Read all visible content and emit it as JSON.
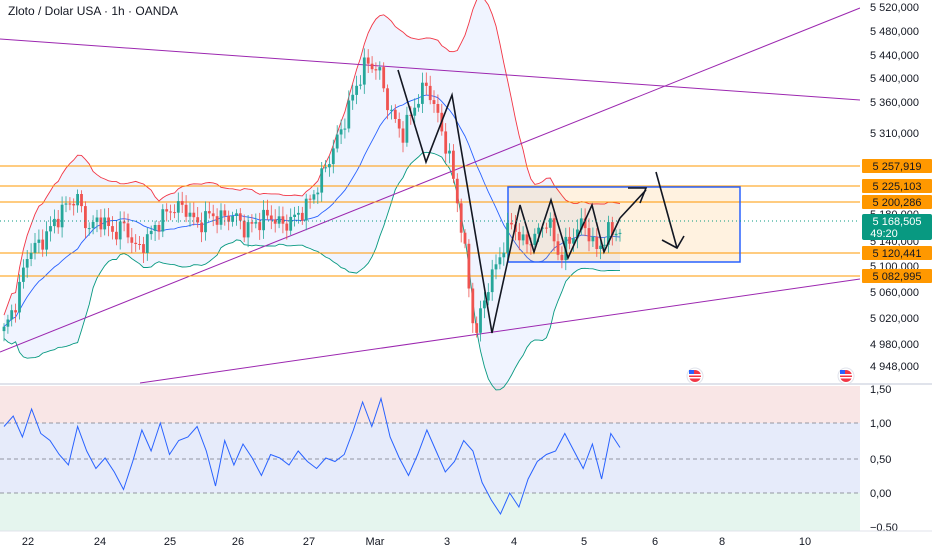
{
  "header": {
    "title": "Zloto / Dolar USA · 1h · OANDA"
  },
  "price_axis": {
    "ticks": [
      "5 520,000",
      "5 480,000",
      "5 440,000",
      "5 400,000",
      "5 360,000",
      "5 310,000",
      "5 180,000",
      "5 140,000",
      "5 100,000",
      "5 060,000",
      "5 020,000",
      "4 980,000",
      "4 948,000"
    ]
  },
  "levels": [
    {
      "label": "5 257,919",
      "value": 5257.919
    },
    {
      "label": "5 225,103",
      "value": 5225.103
    },
    {
      "label": "5 200,286",
      "value": 5200.286
    },
    {
      "label": "5 120,441",
      "value": 5120.441
    },
    {
      "label": "5 082,995",
      "value": 5082.995
    }
  ],
  "current_price": {
    "value_label": "5 168,505",
    "countdown": "49:20",
    "value": 5168.505
  },
  "indicator_axis": {
    "ticks": [
      "1,50",
      "1,00",
      "0,50",
      "0,00",
      "−0,50"
    ]
  },
  "time_axis": {
    "ticks": [
      "22",
      "24",
      "25",
      "26",
      "27",
      "Mar",
      "3",
      "4",
      "5",
      "6",
      "8",
      "10"
    ]
  },
  "colors": {
    "bull": "#26a69a",
    "bear": "#ef5350",
    "level_line": "#ff9800",
    "trendline": "#9c27b0",
    "bb_upper": "#f23645",
    "bb_mid": "#2962ff",
    "bb_lower": "#089981",
    "range_box": "#2962ff",
    "osc_line": "#2962ff",
    "price_tag": "#089981"
  },
  "chart_data": [
    {
      "type": "candlestick",
      "title": "Zloto / Dolar USA · 1h · OANDA",
      "x_ticks": [
        "22",
        "24",
        "25",
        "26",
        "27",
        "Mar",
        "3",
        "4",
        "5",
        "6",
        "8",
        "10"
      ],
      "ylim": [
        4940,
        5530
      ],
      "close_path": [
        {
          "x": 0,
          "y": 5030
        },
        {
          "x": 1,
          "y": 5070
        },
        {
          "x": 2,
          "y": 5140
        },
        {
          "x": 3,
          "y": 5150
        },
        {
          "x": 4,
          "y": 5175
        },
        {
          "x": 5,
          "y": 5200
        },
        {
          "x": 6,
          "y": 5215
        },
        {
          "x": 7,
          "y": 5170
        },
        {
          "x": 8,
          "y": 5185
        },
        {
          "x": 9,
          "y": 5165
        },
        {
          "x": 10,
          "y": 5175
        },
        {
          "x": 11,
          "y": 5140
        },
        {
          "x": 12,
          "y": 5160
        },
        {
          "x": 13,
          "y": 5185
        },
        {
          "x": 14,
          "y": 5200
        },
        {
          "x": 15,
          "y": 5200
        },
        {
          "x": 16,
          "y": 5175
        },
        {
          "x": 17,
          "y": 5190
        },
        {
          "x": 18,
          "y": 5185
        },
        {
          "x": 19,
          "y": 5190
        },
        {
          "x": 20,
          "y": 5170
        },
        {
          "x": 21,
          "y": 5180
        },
        {
          "x": 22,
          "y": 5190
        },
        {
          "x": 23,
          "y": 5175
        },
        {
          "x": 24,
          "y": 5185
        },
        {
          "x": 25,
          "y": 5200
        },
        {
          "x": 26,
          "y": 5230
        },
        {
          "x": 27,
          "y": 5270
        },
        {
          "x": 28,
          "y": 5310
        },
        {
          "x": 29,
          "y": 5360
        },
        {
          "x": 30,
          "y": 5400
        },
        {
          "x": 31,
          "y": 5390
        },
        {
          "x": 32,
          "y": 5330
        },
        {
          "x": 33,
          "y": 5300
        },
        {
          "x": 34,
          "y": 5340
        },
        {
          "x": 35,
          "y": 5370
        },
        {
          "x": 36,
          "y": 5320
        },
        {
          "x": 37,
          "y": 5260
        },
        {
          "x": 38,
          "y": 5160
        },
        {
          "x": 39,
          "y": 5020
        },
        {
          "x": 40,
          "y": 5090
        },
        {
          "x": 41,
          "y": 5130
        },
        {
          "x": 42,
          "y": 5180
        },
        {
          "x": 43,
          "y": 5150
        },
        {
          "x": 44,
          "y": 5160
        },
        {
          "x": 45,
          "y": 5185
        },
        {
          "x": 46,
          "y": 5130
        },
        {
          "x": 47,
          "y": 5160
        },
        {
          "x": 48,
          "y": 5180
        },
        {
          "x": 49,
          "y": 5140
        },
        {
          "x": 50,
          "y": 5165
        },
        {
          "x": 51,
          "y": 5168.505
        }
      ]
    },
    {
      "type": "line",
      "ylim": [
        -0.6,
        1.6
      ],
      "series": [
        {
          "values": [
            0.95,
            1.1,
            0.8,
            1.2,
            0.85,
            0.75,
            0.55,
            0.4,
            0.95,
            0.6,
            0.35,
            0.5,
            0.3,
            0.05,
            0.45,
            0.9,
            0.6,
            1.0,
            0.55,
            0.75,
            0.8,
            0.95,
            0.6,
            0.1,
            0.75,
            0.4,
            0.7,
            0.5,
            0.25,
            0.55,
            0.5,
            0.4,
            0.6,
            0.45,
            0.35,
            0.5,
            0.45,
            0.55,
            0.9,
            1.3,
            0.95,
            1.35,
            0.8,
            0.5,
            0.25,
            0.55,
            0.9,
            0.6,
            0.3,
            0.45,
            0.75,
            0.6,
            0.15,
            -0.1,
            -0.3,
            0.0,
            -0.2,
            0.2,
            0.45,
            0.55,
            0.6,
            0.85,
            0.6,
            0.35,
            0.7,
            0.2,
            0.85,
            0.65
          ]
        }
      ]
    }
  ]
}
